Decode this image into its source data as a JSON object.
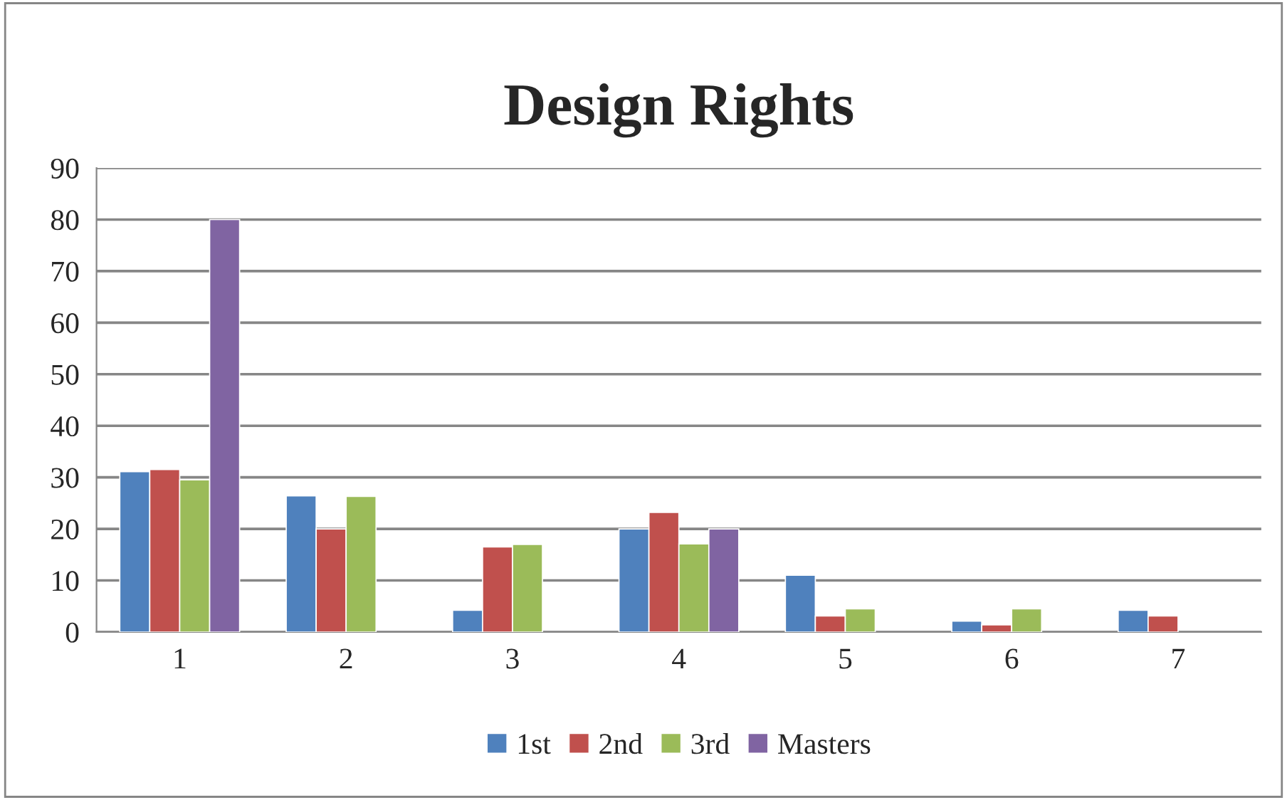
{
  "chart_data": {
    "type": "bar",
    "title": "Design Rights",
    "categories": [
      "1",
      "2",
      "3",
      "4",
      "5",
      "6",
      "7"
    ],
    "series": [
      {
        "name": "1st",
        "color": "#4f81bd",
        "values": [
          31.1,
          26.4,
          4.2,
          20,
          11.0,
          2.1,
          4.2
        ]
      },
      {
        "name": "2nd",
        "color": "#c0504d",
        "values": [
          31.5,
          20,
          16.5,
          23.2,
          3.1,
          1.4,
          3.1
        ]
      },
      {
        "name": "3rd",
        "color": "#9bbb59",
        "values": [
          29.5,
          26.3,
          17.0,
          17.1,
          4.5,
          4.5,
          null
        ]
      },
      {
        "name": "Masters",
        "color": "#8064a2",
        "values": [
          80,
          null,
          null,
          20,
          null,
          null,
          null
        ]
      }
    ],
    "ylim": [
      0,
      90
    ],
    "yticks": [
      0,
      10,
      20,
      30,
      40,
      50,
      60,
      70,
      80,
      90
    ],
    "grid": "y",
    "legend": "bottom"
  }
}
